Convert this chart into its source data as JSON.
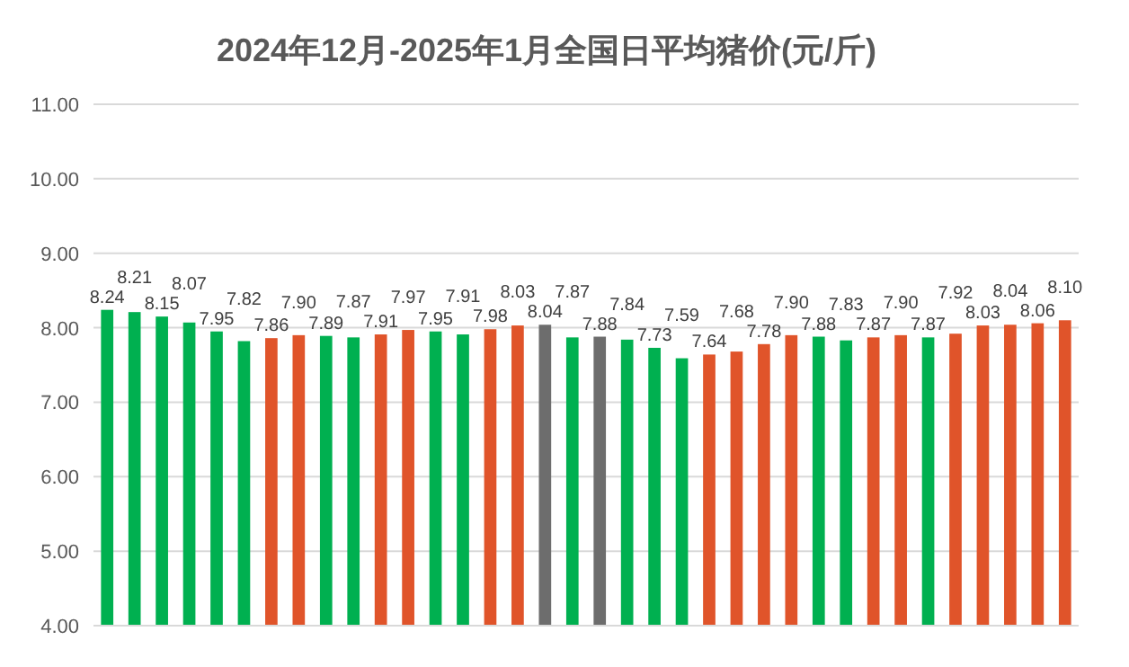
{
  "chart_data": {
    "type": "bar",
    "title": "2024年12月-2025年1月全国日平均猪价(元/斤)",
    "categories": [
      null,
      null,
      null,
      null,
      null,
      null,
      null,
      null,
      null,
      null,
      null,
      null,
      null,
      null,
      null,
      null,
      null,
      null,
      null,
      null,
      null,
      null,
      null,
      null,
      null,
      null,
      null,
      null,
      null,
      null,
      null,
      null,
      null,
      null,
      null,
      null
    ],
    "values": [
      8.24,
      8.21,
      8.15,
      8.07,
      7.95,
      7.82,
      7.86,
      7.9,
      7.89,
      7.87,
      7.91,
      7.97,
      7.95,
      7.91,
      7.98,
      8.03,
      8.04,
      7.87,
      7.88,
      7.84,
      7.73,
      7.59,
      7.64,
      7.68,
      7.78,
      7.9,
      7.88,
      7.83,
      7.87,
      7.9,
      7.87,
      7.92,
      8.03,
      8.04,
      8.06,
      8.1
    ],
    "value_labels": [
      "8.24",
      "8.21",
      "8.15",
      "8.07",
      "7.95",
      "7.82",
      "7.86",
      "7.90",
      "7.89",
      "7.87",
      "7.91",
      "7.97",
      "7.95",
      "7.91",
      "7.98",
      "8.03",
      "8.04",
      "7.87",
      "7.88",
      "7.84",
      "7.73",
      "7.59",
      "7.64",
      "7.68",
      "7.78",
      "7.90",
      "7.88",
      "7.83",
      "7.87",
      "7.90",
      "7.87",
      "7.92",
      "8.03",
      "8.04",
      "8.06",
      "8.10"
    ],
    "colors": [
      "#00b050",
      "#00b050",
      "#00b050",
      "#00b050",
      "#00b050",
      "#00b050",
      "#e0542a",
      "#e0542a",
      "#00b050",
      "#00b050",
      "#e0542a",
      "#e0542a",
      "#00b050",
      "#00b050",
      "#e0542a",
      "#e0542a",
      "#6d6d6d",
      "#00b050",
      "#6d6d6d",
      "#00b050",
      "#00b050",
      "#00b050",
      "#e0542a",
      "#e0542a",
      "#e0542a",
      "#e0542a",
      "#00b050",
      "#00b050",
      "#e0542a",
      "#e0542a",
      "#00b050",
      "#e0542a",
      "#e0542a",
      "#e0542a",
      "#e0542a",
      "#e0542a"
    ],
    "ylim": [
      4,
      11
    ],
    "yticks": [
      {
        "value": 4,
        "label": "4.00"
      },
      {
        "value": 5,
        "label": "5.00"
      },
      {
        "value": 6,
        "label": "6.00"
      },
      {
        "value": 7,
        "label": "7.00"
      },
      {
        "value": 8,
        "label": "8.00"
      },
      {
        "value": 9,
        "label": "9.00"
      },
      {
        "value": 10,
        "label": "10.00"
      },
      {
        "value": 11,
        "label": "11.00"
      }
    ],
    "grid": "y",
    "tick_labels": "y"
  }
}
